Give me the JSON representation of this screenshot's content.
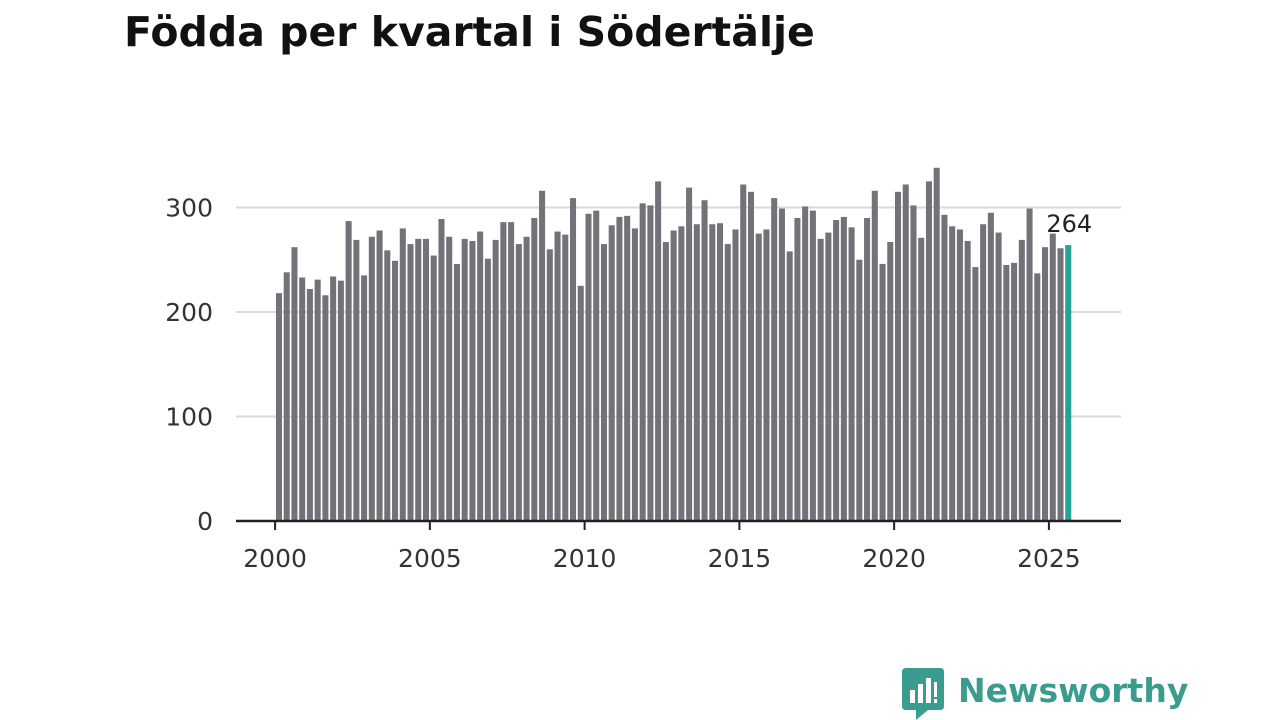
{
  "title": "Födda per kvartal i Södertälje",
  "chart_data": {
    "type": "bar",
    "title": "Födda per kvartal i Södertälje",
    "xlabel": "",
    "ylabel": "",
    "x_start_year": 2000,
    "periods_per_year": 4,
    "x_ticks": [
      "2000",
      "2005",
      "2010",
      "2015",
      "2020",
      "2025"
    ],
    "y_ticks": [
      "0",
      "100",
      "200",
      "300"
    ],
    "ylim": [
      0,
      350
    ],
    "grid": true,
    "values": [
      218,
      238,
      262,
      233,
      222,
      231,
      216,
      234,
      230,
      287,
      269,
      235,
      272,
      278,
      259,
      249,
      280,
      265,
      270,
      270,
      254,
      289,
      272,
      246,
      270,
      268,
      277,
      251,
      269,
      286,
      286,
      265,
      272,
      290,
      316,
      260,
      277,
      274,
      309,
      225,
      294,
      297,
      265,
      283,
      291,
      292,
      280,
      304,
      302,
      325,
      267,
      278,
      282,
      319,
      284,
      307,
      284,
      285,
      265,
      279,
      322,
      315,
      275,
      279,
      309,
      299,
      258,
      290,
      301,
      297,
      270,
      276,
      288,
      291,
      281,
      250,
      290,
      316,
      246,
      267,
      315,
      322,
      302,
      271,
      325,
      338,
      293,
      282,
      279,
      268,
      243,
      284,
      295,
      276,
      245,
      247,
      269,
      299,
      237,
      262,
      275,
      261,
      264
    ],
    "last_value_label": "264",
    "bar_color": "#737278",
    "highlight_color": "#23a396",
    "grid_color": "#d9d9d9",
    "axis_color": "#222222"
  },
  "brand": {
    "name": "Newsworthy",
    "icon": "newsworthy-logo-icon",
    "color": "#3a9c8e"
  }
}
